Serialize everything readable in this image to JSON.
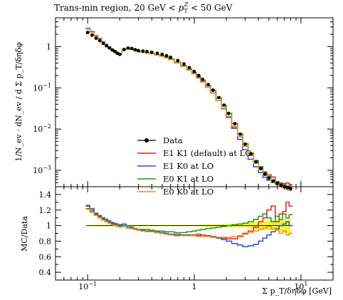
{
  "chart_data": {
    "type": "line",
    "title": "Trans-min region, 20 GeV < p_T^Z < 50 GeV",
    "xlabel": "Σ p_T/δηδφ [GeV]",
    "ylabel_main": "1/N_ev · dN_ev / d Σ p_T/δηδφ",
    "ylabel_ratio": "MC/Data",
    "xscale": "log",
    "xlim": [
      0.05,
      20
    ],
    "main_yscale": "log",
    "main_ylim": [
      0.0004,
      5
    ],
    "ratio_ylim": [
      0.3,
      1.5
    ],
    "x_tick_labels": [
      "10^-1",
      "1",
      "10^1"
    ],
    "main_y_tick_labels": [
      "10^-3",
      "10^-2",
      "10^-1",
      "1"
    ],
    "ratio_y_tick_labels": [
      "0.4",
      "0.6",
      "0.8",
      "1",
      "1.2",
      "1.4"
    ],
    "legend_position": "center-right",
    "x": [
      0.1,
      0.11,
      0.12,
      0.13,
      0.14,
      0.15,
      0.16,
      0.17,
      0.18,
      0.19,
      0.2,
      0.22,
      0.24,
      0.26,
      0.28,
      0.3,
      0.33,
      0.36,
      0.4,
      0.45,
      0.5,
      0.55,
      0.6,
      0.7,
      0.8,
      0.9,
      1.0,
      1.1,
      1.2,
      1.35,
      1.5,
      1.7,
      1.9,
      2.1,
      2.4,
      2.7,
      3.0,
      3.4,
      3.8,
      4.2,
      4.6,
      5.0,
      5.5,
      6.0,
      6.5,
      7.0,
      7.5,
      8.0
    ],
    "series": [
      {
        "name": "Data",
        "color": "#000000",
        "values": [
          2.2,
          1.9,
          1.6,
          1.4,
          1.2,
          1.05,
          0.93,
          0.83,
          0.76,
          0.69,
          0.65,
          0.85,
          0.92,
          0.9,
          0.84,
          0.8,
          0.78,
          0.76,
          0.73,
          0.69,
          0.65,
          0.6,
          0.55,
          0.46,
          0.38,
          0.31,
          0.25,
          0.2,
          0.16,
          0.12,
          0.088,
          0.058,
          0.038,
          0.024,
          0.0135,
          0.0075,
          0.0043,
          0.0025,
          0.0016,
          0.0011,
          0.0008,
          0.00065,
          0.00055,
          0.00048,
          0.00043,
          0.0004,
          0.00038,
          0.00036
        ]
      },
      {
        "name": "E1 K1 (default) at LO",
        "color": "#e8220e",
        "ratio": [
          1.26,
          1.2,
          1.15,
          1.12,
          1.09,
          1.07,
          1.05,
          1.03,
          1.02,
          1.0,
          1.0,
          1.0,
          0.97,
          0.96,
          0.95,
          0.94,
          0.93,
          0.93,
          0.92,
          0.91,
          0.9,
          0.89,
          0.88,
          0.87,
          0.87,
          0.88,
          0.88,
          0.89,
          0.88,
          0.87,
          0.86,
          0.85,
          0.84,
          0.83,
          0.83,
          0.86,
          0.9,
          0.93,
          0.98,
          1.05,
          1.1,
          1.2,
          1.25,
          1.05,
          1.15,
          1.18,
          1.3,
          1.25
        ]
      },
      {
        "name": "E1 K0 at LO",
        "color": "#2250d8",
        "ratio": [
          1.25,
          1.22,
          1.16,
          1.13,
          1.1,
          1.08,
          1.06,
          1.04,
          1.03,
          1.02,
          1.01,
          1.02,
          1.0,
          0.98,
          0.96,
          0.95,
          0.94,
          0.93,
          0.93,
          0.92,
          0.91,
          0.9,
          0.89,
          0.89,
          0.88,
          0.88,
          0.87,
          0.87,
          0.86,
          0.86,
          0.85,
          0.84,
          0.82,
          0.8,
          0.77,
          0.75,
          0.73,
          0.74,
          0.76,
          0.8,
          0.84,
          0.88,
          0.92,
          0.96,
          1.0,
          1.02,
          1.05,
          1.0
        ]
      },
      {
        "name": "E0 K1 at LO",
        "color": "#1c9a1c",
        "ratio": [
          1.22,
          1.18,
          1.14,
          1.11,
          1.08,
          1.06,
          1.04,
          1.02,
          1.01,
          1.0,
          0.99,
          1.0,
          0.98,
          0.97,
          0.96,
          0.95,
          0.95,
          0.95,
          0.94,
          0.93,
          0.93,
          0.92,
          0.92,
          0.91,
          0.91,
          0.92,
          0.93,
          0.94,
          0.95,
          0.96,
          0.97,
          0.98,
          0.99,
          1.0,
          1.01,
          1.02,
          1.03,
          1.05,
          1.08,
          1.12,
          1.15,
          1.1,
          1.05,
          1.12,
          1.08,
          1.15,
          1.1,
          1.14
        ]
      },
      {
        "name": "E0 K0 at LO",
        "color": "#f28d1e",
        "ratio": [
          1.21,
          1.17,
          1.13,
          1.1,
          1.07,
          1.05,
          1.03,
          1.01,
          1.0,
          0.99,
          0.98,
          0.99,
          0.97,
          0.96,
          0.95,
          0.94,
          0.93,
          0.92,
          0.92,
          0.91,
          0.9,
          0.89,
          0.88,
          0.88,
          0.87,
          0.87,
          0.87,
          0.86,
          0.86,
          0.86,
          0.85,
          0.85,
          0.85,
          0.85,
          0.86,
          0.87,
          0.89,
          0.91,
          0.93,
          0.95,
          0.97,
          0.99,
          0.96,
          0.94,
          0.9,
          0.93,
          0.88,
          0.9
        ]
      }
    ],
    "data_uncertainty_band": {
      "color": "#f5f516",
      "x": [
        0.1,
        0.5,
        1.0,
        2.0,
        3.0,
        4.0,
        5.0,
        6.0,
        7.0,
        8.0
      ],
      "upper": [
        1.01,
        1.01,
        1.01,
        1.02,
        1.03,
        1.05,
        1.06,
        1.07,
        1.08,
        1.1
      ],
      "lower": [
        0.99,
        0.99,
        0.99,
        0.98,
        0.97,
        0.95,
        0.94,
        0.93,
        0.91,
        0.88
      ]
    }
  }
}
